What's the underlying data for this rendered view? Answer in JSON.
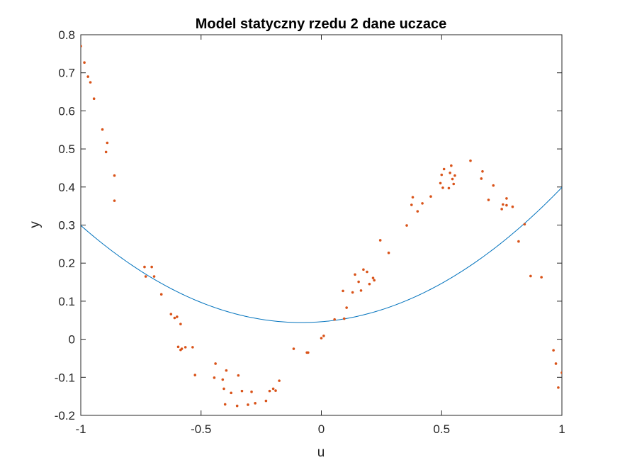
{
  "chart_data": {
    "type": "scatter",
    "title": "Model statyczny rzedu 2 dane uczace",
    "xlabel": "u",
    "ylabel": "y",
    "xlim": [
      -1,
      1
    ],
    "ylim": [
      -0.2,
      0.8
    ],
    "xticks": [
      -1,
      -0.5,
      0,
      0.5,
      1
    ],
    "xtick_labels": [
      "-1",
      "-0.5",
      "0",
      "0.5",
      "1"
    ],
    "yticks": [
      -0.2,
      -0.1,
      0,
      0.1,
      0.2,
      0.3,
      0.4,
      0.5,
      0.6,
      0.7,
      0.8
    ],
    "ytick_labels": [
      "-0.2",
      "-0.1",
      "0",
      "0.1",
      "0.2",
      "0.3",
      "0.4",
      "0.5",
      "0.6",
      "0.7",
      "0.8"
    ],
    "grid": false,
    "series": [
      {
        "kind": "line",
        "color": "#0072BD",
        "coefficients": {
          "a": 0.303,
          "b": 0.05,
          "c": 0.046
        },
        "x_range": [
          -1,
          1
        ]
      },
      {
        "kind": "scatter",
        "color": "#D95319",
        "points": [
          [
            -1.0,
            0.77
          ],
          [
            -0.985,
            0.727
          ],
          [
            -0.97,
            0.69
          ],
          [
            -0.96,
            0.675
          ],
          [
            -0.945,
            0.632
          ],
          [
            -0.91,
            0.551
          ],
          [
            -0.895,
            0.492
          ],
          [
            -0.89,
            0.516
          ],
          [
            -0.86,
            0.43
          ],
          [
            -0.86,
            0.364
          ],
          [
            -0.735,
            0.19
          ],
          [
            -0.73,
            0.165
          ],
          [
            -0.705,
            0.19
          ],
          [
            -0.695,
            0.165
          ],
          [
            -0.665,
            0.118
          ],
          [
            -0.625,
            0.066
          ],
          [
            -0.61,
            0.056
          ],
          [
            -0.6,
            0.059
          ],
          [
            -0.595,
            -0.02
          ],
          [
            -0.585,
            0.04
          ],
          [
            -0.585,
            -0.028
          ],
          [
            -0.58,
            -0.025
          ],
          [
            -0.565,
            -0.021
          ],
          [
            -0.535,
            -0.021
          ],
          [
            -0.525,
            -0.094
          ],
          [
            -0.445,
            -0.101
          ],
          [
            -0.44,
            -0.064
          ],
          [
            -0.41,
            -0.106
          ],
          [
            -0.405,
            -0.13
          ],
          [
            -0.395,
            -0.082
          ],
          [
            -0.4,
            -0.171
          ],
          [
            -0.375,
            -0.141
          ],
          [
            -0.35,
            -0.175
          ],
          [
            -0.345,
            -0.095
          ],
          [
            -0.33,
            -0.136
          ],
          [
            -0.305,
            -0.172
          ],
          [
            -0.29,
            -0.138
          ],
          [
            -0.275,
            -0.168
          ],
          [
            -0.23,
            -0.162
          ],
          [
            -0.215,
            -0.136
          ],
          [
            -0.2,
            -0.13
          ],
          [
            -0.19,
            -0.135
          ],
          [
            -0.175,
            -0.109
          ],
          [
            -0.115,
            -0.025
          ],
          [
            -0.06,
            -0.035
          ],
          [
            -0.055,
            -0.035
          ],
          [
            0.0,
            0.003
          ],
          [
            0.01,
            0.009
          ],
          [
            0.055,
            0.052
          ],
          [
            0.09,
            0.127
          ],
          [
            0.095,
            0.054
          ],
          [
            0.105,
            0.083
          ],
          [
            0.13,
            0.123
          ],
          [
            0.14,
            0.17
          ],
          [
            0.155,
            0.151
          ],
          [
            0.165,
            0.128
          ],
          [
            0.175,
            0.183
          ],
          [
            0.19,
            0.177
          ],
          [
            0.2,
            0.145
          ],
          [
            0.215,
            0.161
          ],
          [
            0.22,
            0.155
          ],
          [
            0.245,
            0.26
          ],
          [
            0.28,
            0.227
          ],
          [
            0.355,
            0.299
          ],
          [
            0.375,
            0.353
          ],
          [
            0.38,
            0.373
          ],
          [
            0.4,
            0.336
          ],
          [
            0.42,
            0.357
          ],
          [
            0.455,
            0.375
          ],
          [
            0.495,
            0.41
          ],
          [
            0.5,
            0.432
          ],
          [
            0.505,
            0.398
          ],
          [
            0.51,
            0.447
          ],
          [
            0.53,
            0.397
          ],
          [
            0.535,
            0.437
          ],
          [
            0.54,
            0.456
          ],
          [
            0.545,
            0.421
          ],
          [
            0.55,
            0.408
          ],
          [
            0.555,
            0.43
          ],
          [
            0.62,
            0.469
          ],
          [
            0.665,
            0.422
          ],
          [
            0.67,
            0.441
          ],
          [
            0.695,
            0.366
          ],
          [
            0.715,
            0.404
          ],
          [
            0.75,
            0.342
          ],
          [
            0.755,
            0.354
          ],
          [
            0.77,
            0.352
          ],
          [
            0.77,
            0.37
          ],
          [
            0.795,
            0.348
          ],
          [
            0.82,
            0.257
          ],
          [
            0.845,
            0.302
          ],
          [
            0.87,
            0.166
          ],
          [
            0.915,
            0.163
          ],
          [
            0.965,
            -0.029
          ],
          [
            0.975,
            -0.064
          ],
          [
            0.985,
            -0.127
          ],
          [
            1.0,
            -0.088
          ]
        ]
      }
    ]
  }
}
